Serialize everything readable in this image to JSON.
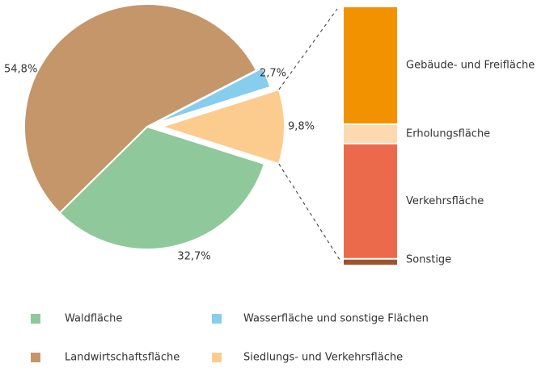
{
  "chart_data": {
    "type": "pie-of-bar",
    "categories": [
      "Waldfläche",
      "Wasserfläche und sonstige Flächen",
      "Landwirtschaftsfläche",
      "Siedlungs- und Verkehrsfläche"
    ],
    "values": [
      32.7,
      2.7,
      54.8,
      9.8
    ],
    "value_labels": [
      "32,7%",
      "2,7%",
      "54,8%",
      "9,8%"
    ],
    "colors": [
      "#8fc89a",
      "#86cdee",
      "#c4966a",
      "#fccb8e"
    ],
    "breakdown": {
      "categories": [
        "Gebäude- und Freifläche",
        "Erholungsfläche",
        "Verkehrsfläche",
        "Sonstige"
      ],
      "values": [
        46,
        7,
        45,
        2
      ],
      "colors": [
        "#f39200",
        "#fdd9b0",
        "#ec6a4c",
        "#a0522d"
      ]
    },
    "legend": "bottom"
  }
}
